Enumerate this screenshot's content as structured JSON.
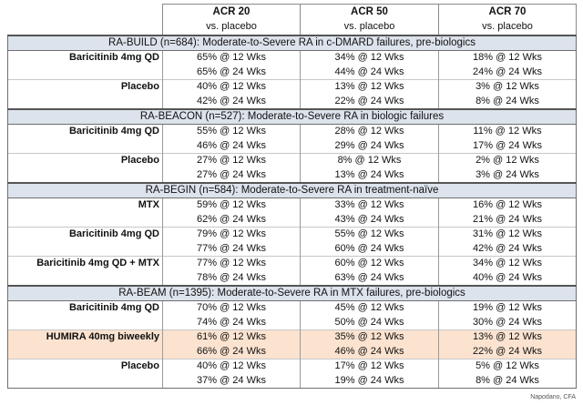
{
  "header": {
    "columns": [
      {
        "title": "ACR 20",
        "subtitle": "vs. placebo"
      },
      {
        "title": "ACR 50",
        "subtitle": "vs. placebo"
      },
      {
        "title": "ACR 70",
        "subtitle": "vs. placebo"
      }
    ]
  },
  "sections": [
    {
      "title": "RA-BUILD (n=684): Moderate-to-Severe RA in c-DMARD failures, pre-biologics",
      "rows": [
        {
          "label": "Baricitinib 4mg QD",
          "acr20": "65% @ 12 Wks",
          "acr50": "34% @ 12 Wks",
          "acr70": "18% @ 12 Wks"
        },
        {
          "label": "",
          "acr20": "65% @ 24 Wks",
          "acr50": "44% @ 24 Wks",
          "acr70": "24% @ 24 Wks"
        },
        {
          "label": "Placebo",
          "acr20": "40% @ 12 Wks",
          "acr50": "13% @ 12 Wks",
          "acr70": "3% @ 12 Wks"
        },
        {
          "label": "",
          "acr20": "42% @ 24 Wks",
          "acr50": "22% @ 24 Wks",
          "acr70": "8% @ 24 Wks"
        }
      ]
    },
    {
      "title": "RA-BEACON (n=527): Moderate-to-Severe RA in biologic failures",
      "rows": [
        {
          "label": "Baricitinib 4mg QD",
          "acr20": "55% @ 12 Wks",
          "acr50": "28% @ 12 Wks",
          "acr70": "11% @ 12 Wks"
        },
        {
          "label": "",
          "acr20": "46% @ 24 Wks",
          "acr50": "29% @ 24 Wks",
          "acr70": "17% @ 24 Wks"
        },
        {
          "label": "Placebo",
          "acr20": "27% @ 12 Wks",
          "acr50": "8% @ 12 Wks",
          "acr70": "2% @ 12 Wks"
        },
        {
          "label": "",
          "acr20": "27% @ 24 Wks",
          "acr50": "13% @ 24 Wks",
          "acr70": "3% @ 24 Wks"
        }
      ]
    },
    {
      "title": "RA-BEGIN (n=584): Moderate-to-Severe RA in treatment-naïve",
      "rows": [
        {
          "label": "MTX",
          "acr20": "59% @ 12 Wks",
          "acr50": "33% @ 12 Wks",
          "acr70": "16% @ 12 Wks"
        },
        {
          "label": "",
          "acr20": "62% @ 24 Wks",
          "acr50": "43% @ 24 Wks",
          "acr70": "21% @ 24 Wks"
        },
        {
          "label": "Baricitinib 4mg QD",
          "acr20": "79% @ 12 Wks",
          "acr50": "55% @ 12 Wks",
          "acr70": "31% @ 12 Wks"
        },
        {
          "label": "",
          "acr20": "77% @ 24 Wks",
          "acr50": "60% @ 24 Wks",
          "acr70": "42% @ 24 Wks"
        },
        {
          "label": "Baricitinib 4mg QD + MTX",
          "acr20": "77% @ 12 Wks",
          "acr50": "60% @ 12 Wks",
          "acr70": "34% @ 12 Wks"
        },
        {
          "label": "",
          "acr20": "78% @ 24 Wks",
          "acr50": "63% @ 24 Wks",
          "acr70": "40% @ 24 Wks"
        }
      ]
    },
    {
      "title": "RA-BEAM (n=1395): Moderate-to-Severe RA in MTX failures, pre-biologics",
      "rows": [
        {
          "label": "Baricitinib 4mg QD",
          "acr20": "70% @ 12 Wks",
          "acr50": "45% @ 12 Wks",
          "acr70": "19% @ 12 Wks"
        },
        {
          "label": "",
          "acr20": "74% @ 24 Wks",
          "acr50": "50% @ 24 Wks",
          "acr70": "30% @ 24 Wks"
        },
        {
          "label": "HUMIRA 40mg biweekly",
          "acr20": "61% @ 12 Wks",
          "acr50": "35% @ 12 Wks",
          "acr70": "13% @ 12 Wks",
          "highlight": true
        },
        {
          "label": "",
          "acr20": "66% @ 24 Wks",
          "acr50": "46% @ 24 Wks",
          "acr70": "22% @ 24 Wks",
          "highlight": true
        },
        {
          "label": "Placebo",
          "acr20": "40% @ 12 Wks",
          "acr50": "17% @ 12 Wks",
          "acr70": "5% @ 12 Wks"
        },
        {
          "label": "",
          "acr20": "37% @ 24 Wks",
          "acr50": "19% @ 24 Wks",
          "acr70": "8% @ 24 Wks"
        }
      ]
    }
  ],
  "colors": {
    "section_bg": "#dde3ec",
    "highlight_bg": "#fbe3d0"
  },
  "footer": "Napodano, CFA"
}
